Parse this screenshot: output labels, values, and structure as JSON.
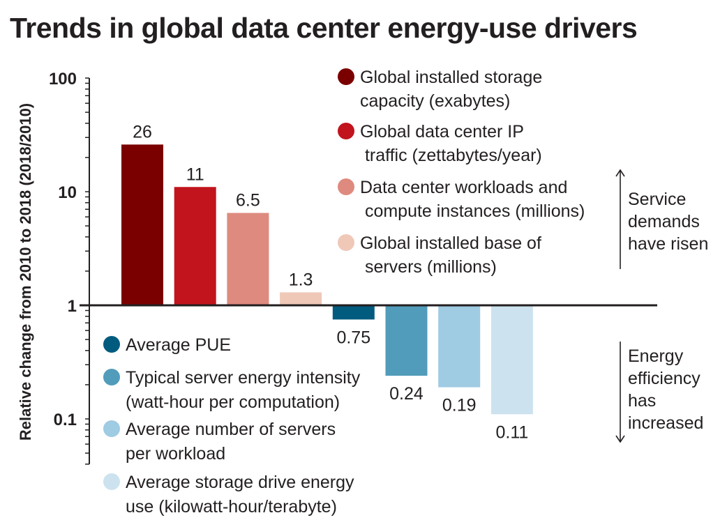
{
  "chart_data": {
    "type": "bar",
    "title": "Trends in global data center energy-use drivers",
    "xlabel": "",
    "ylabel": "Relative change from 2010 to 2018 (2018/2010)",
    "yscale": "log",
    "ylim": [
      0.04,
      100
    ],
    "baseline": 1,
    "yticks": [
      {
        "value": 100,
        "label": "100"
      },
      {
        "value": 10,
        "label": "10"
      },
      {
        "value": 1,
        "label": "1"
      },
      {
        "value": 0.1,
        "label": "0.1"
      }
    ],
    "grid": false,
    "series": [
      {
        "name": "Global installed storage capacity (exabytes)",
        "legend_lines": [
          "Global installed storage",
          "capacity (exabytes)"
        ],
        "value": 26,
        "label": "26",
        "color": "#7a0000",
        "group": "service"
      },
      {
        "name": "Global data center IP traffic (zettabytes/year)",
        "legend_lines": [
          "Global data center IP",
          " traffic (zettabytes/year)"
        ],
        "value": 11,
        "label": "11",
        "color": "#c1141d",
        "group": "service"
      },
      {
        "name": "Data center workloads and compute instances (millions)",
        "legend_lines": [
          "Data center workloads and",
          " compute instances (millions)"
        ],
        "value": 6.5,
        "label": "6.5",
        "color": "#de8a7e",
        "group": "service"
      },
      {
        "name": "Global installed base of servers (millions)",
        "legend_lines": [
          "Global installed base of",
          " servers (millions)"
        ],
        "value": 1.3,
        "label": "1.3",
        "color": "#f0c8b8",
        "group": "service"
      },
      {
        "name": "Average PUE",
        "legend_lines": [
          "Average PUE"
        ],
        "value": 0.75,
        "label": "0.75",
        "color": "#005b7f",
        "group": "efficiency"
      },
      {
        "name": "Typical server energy intensity (watt-hour per computation)",
        "legend_lines": [
          "Typical server energy intensity",
          "(watt-hour per computation)"
        ],
        "value": 0.24,
        "label": "0.24",
        "color": "#519cba",
        "group": "efficiency"
      },
      {
        "name": "Average number of servers per workload",
        "legend_lines": [
          "Average number of servers",
          "per workload"
        ],
        "value": 0.19,
        "label": "0.19",
        "color": "#9fcbe3",
        "group": "efficiency"
      },
      {
        "name": "Average storage drive energy use (kilowatt-hour/terabyte)",
        "legend_lines": [
          "Average storage drive energy",
          "use (kilowatt-hour/terabyte)"
        ],
        "value": 0.11,
        "label": "0.11",
        "color": "#cce3ef",
        "group": "efficiency"
      }
    ],
    "legend_placement": "top-right (service) / bottom-left (efficiency)",
    "annotations": [
      {
        "direction": "up",
        "lines": [
          "Service",
          "demands",
          "have risen"
        ]
      },
      {
        "direction": "down",
        "lines": [
          "Energy",
          "efficiency",
          "has",
          "increased"
        ]
      }
    ]
  }
}
